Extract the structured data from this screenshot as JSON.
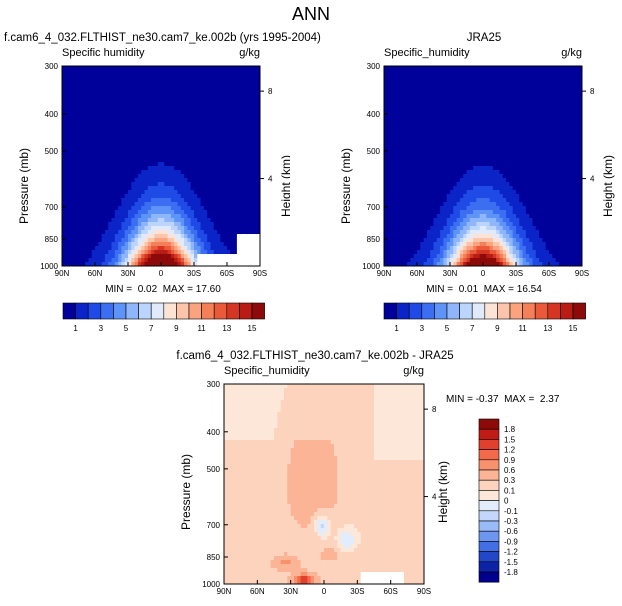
{
  "page_title": "ANN",
  "chart_data": [
    {
      "type": "heatmap",
      "title": "f.cam6_4_032.FLTHIST_ne30.cam7_ke.002b (yrs 1995-2004)",
      "left_label": "Specific humidity",
      "units": "g/kg",
      "ylabel": "Pressure (mb)",
      "y2label": "Height (km)",
      "yticks": [
        "300",
        "400",
        "500",
        "700",
        "850",
        "1000"
      ],
      "y2ticks": [
        "8",
        "4"
      ],
      "xticks": [
        "90N",
        "60N",
        "30N",
        "0",
        "30S",
        "60S",
        "90S"
      ],
      "stats": "MIN =  0.02  MAX = 17.60",
      "field_max": 17.6,
      "ylim": [
        1000,
        300
      ],
      "xlim": [
        90,
        -90
      ]
    },
    {
      "type": "heatmap",
      "title": "JRA25",
      "left_label": "Specific_humidity",
      "units": "g/kg",
      "ylabel": "Pressure (mb)",
      "y2label": "Height (km)",
      "yticks": [
        "300",
        "400",
        "500",
        "700",
        "850",
        "1000"
      ],
      "y2ticks": [
        "8",
        "4"
      ],
      "xticks": [
        "90N",
        "60N",
        "30N",
        "0",
        "30S",
        "60S",
        "90S"
      ],
      "stats": "MIN =  0.01  MAX = 16.54",
      "field_max": 16.54,
      "ylim": [
        1000,
        300
      ],
      "xlim": [
        90,
        -90
      ]
    },
    {
      "type": "heatmap",
      "title": "f.cam6_4_032.FLTHIST_ne30.cam7_ke.002b - JRA25",
      "left_label": "Specific_humidity",
      "units": "g/kg",
      "ylabel": "Pressure (mb)",
      "y2label": "Height (km)",
      "yticks": [
        "300",
        "400",
        "500",
        "700",
        "850",
        "1000"
      ],
      "y2ticks": [
        "8",
        "4"
      ],
      "xticks": [
        "90N",
        "60N",
        "30N",
        "0",
        "30S",
        "60S",
        "90S"
      ],
      "stats": "MIN = -0.37  MAX =  2.37",
      "field_min": -0.37,
      "field_max": 2.37,
      "ylim": [
        1000,
        300
      ],
      "xlim": [
        90,
        -90
      ]
    }
  ],
  "colorbar_top": {
    "labels": [
      "1",
      "3",
      "5",
      "7",
      "9",
      "11",
      "13",
      "15"
    ],
    "colors": [
      "#00009a",
      "#0a24c8",
      "#1f4ae6",
      "#3c6ef2",
      "#5e93f8",
      "#8fb6fb",
      "#bcd5fc",
      "#e0eafb",
      "#fbe4d6",
      "#fcc4aa",
      "#fba37f",
      "#f57f58",
      "#ea5a3a",
      "#d53523",
      "#b81c14",
      "#8c0b0a"
    ]
  },
  "colorbar_diff": {
    "labels": [
      "1.8",
      "1.5",
      "1.2",
      "0.9",
      "0.6",
      "0.3",
      "0.1",
      "0",
      "-0.1",
      "-0.3",
      "-0.6",
      "-0.9",
      "-1.2",
      "-1.5",
      "-1.8"
    ],
    "colors": [
      "#8c0b0a",
      "#c11b16",
      "#e0402c",
      "#f26a4a",
      "#f8916e",
      "#fbb596",
      "#fcd3bc",
      "#fde7d8",
      "#e2ecfa",
      "#c2d7fb",
      "#99bbf8",
      "#6d96f0",
      "#436ee4",
      "#2446c8",
      "#0d23a6",
      "#00008c"
    ]
  }
}
